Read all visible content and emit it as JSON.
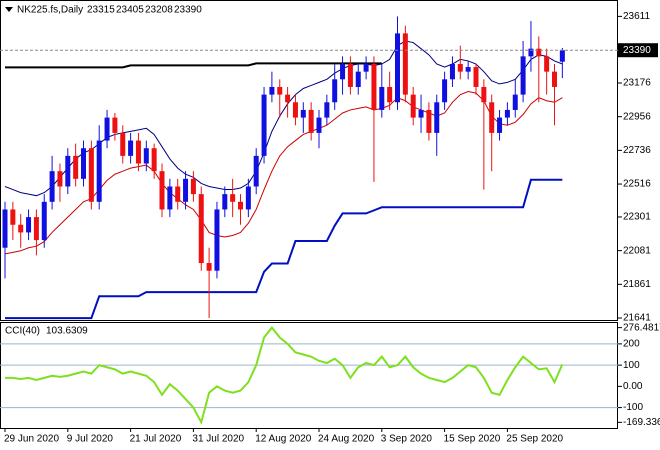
{
  "chart_data": [
    {
      "type": "candlestick",
      "title": "NK225.fs,Daily",
      "categories": [
        "29 Jun 2020",
        null,
        null,
        null,
        null,
        null,
        null,
        null,
        "9 Jul 2020",
        null,
        null,
        null,
        null,
        null,
        null,
        null,
        "21 Jul 2020",
        null,
        null,
        null,
        null,
        null,
        null,
        null,
        "31 Jul 2020",
        null,
        null,
        null,
        null,
        null,
        null,
        null,
        "12 Aug 2020",
        null,
        null,
        null,
        null,
        null,
        null,
        null,
        "24 Aug 2020",
        null,
        null,
        null,
        null,
        null,
        null,
        null,
        "3 Sep 2020",
        null,
        null,
        null,
        null,
        null,
        null,
        null,
        "15 Sep 2020",
        null,
        null,
        null,
        null,
        null,
        null,
        null,
        "25 Sep 2020",
        null,
        null,
        null,
        null,
        null,
        null,
        null
      ],
      "open": [
        22100,
        22350,
        22250,
        22200,
        22300,
        22150,
        22400,
        22600,
        22500,
        22700,
        22550,
        22750,
        22400,
        22800,
        22950,
        22850,
        22700,
        22800,
        22650,
        22750,
        22600,
        22350,
        22500,
        22400,
        22550,
        22450,
        22000,
        21950,
        22350,
        22450,
        22400,
        22350,
        22500,
        22700,
        23100,
        23150,
        23100,
        23050,
        22950,
        23000,
        22850,
        22950,
        23050,
        23200,
        23300,
        23150,
        23250,
        23300,
        23000,
        23150,
        23050,
        23500,
        23100,
        22950,
        23000,
        22850,
        23050,
        23200,
        23300,
        23250,
        23280,
        23150,
        23050,
        22850,
        22950,
        23000,
        23100,
        23350,
        23400,
        23350,
        23250,
        23315
      ],
      "high": [
        22400,
        22400,
        22320,
        22350,
        22350,
        22450,
        22700,
        22650,
        22750,
        22780,
        22800,
        22800,
        22900,
        23000,
        22980,
        22900,
        22850,
        22850,
        22800,
        22780,
        22650,
        22550,
        22550,
        22600,
        22600,
        22500,
        22100,
        22400,
        22500,
        22550,
        22450,
        22550,
        22750,
        23150,
        23250,
        23200,
        23150,
        23100,
        23050,
        23050,
        23000,
        23100,
        23300,
        23350,
        23350,
        23300,
        23350,
        23350,
        23300,
        23250,
        23611,
        23550,
        23150,
        23100,
        23050,
        23100,
        23250,
        23350,
        23420,
        23320,
        23300,
        23200,
        23100,
        23000,
        23050,
        23200,
        23450,
        23580,
        23480,
        23400,
        23300,
        23405
      ],
      "low": [
        21900,
        22150,
        22100,
        22150,
        22050,
        22100,
        22350,
        22400,
        22450,
        22500,
        22500,
        22350,
        22350,
        22750,
        22800,
        22650,
        22650,
        22600,
        22600,
        22550,
        22300,
        22300,
        22350,
        22350,
        22400,
        21950,
        21641,
        21900,
        22300,
        22300,
        22250,
        22300,
        22450,
        22650,
        23050,
        22950,
        22950,
        22900,
        22850,
        22800,
        22750,
        22900,
        23000,
        23100,
        23100,
        23100,
        23200,
        22530,
        22950,
        23000,
        23000,
        23050,
        22900,
        22850,
        22800,
        22700,
        23000,
        23150,
        23200,
        23200,
        23100,
        22480,
        22600,
        22800,
        22900,
        22950,
        23050,
        23250,
        23050,
        23100,
        22900,
        23208
      ],
      "close": [
        22350,
        22250,
        22200,
        22300,
        22150,
        22400,
        22600,
        22500,
        22700,
        22550,
        22750,
        22400,
        22800,
        22950,
        22850,
        22700,
        22800,
        22650,
        22750,
        22600,
        22350,
        22500,
        22400,
        22550,
        22450,
        22000,
        21950,
        22350,
        22450,
        22400,
        22350,
        22500,
        22700,
        23100,
        23150,
        23100,
        23050,
        22950,
        23000,
        22850,
        22950,
        23050,
        23200,
        23300,
        23150,
        23250,
        23300,
        23000,
        23150,
        23050,
        23500,
        23100,
        22950,
        23000,
        22850,
        23050,
        23200,
        23300,
        23250,
        23280,
        23150,
        23050,
        22850,
        22950,
        23000,
        23100,
        23350,
        23400,
        23350,
        23250,
        23150,
        23390
      ],
      "up_color": "#1010e0",
      "down_color": "#ee1111",
      "lines": [
        {
          "color": "#000000",
          "width": 2,
          "values": [
            23278,
            23278,
            23278,
            23278,
            23278,
            23278,
            23278,
            23278,
            23278,
            23278,
            23278,
            23278,
            23278,
            23278,
            23278,
            23278,
            23291,
            23291,
            23291,
            23291,
            23291,
            23291,
            23291,
            23291,
            23291,
            23291,
            23291,
            23291,
            23291,
            23291,
            23291,
            23291,
            23304,
            23304,
            23304,
            23304,
            23304,
            23304,
            23304,
            23304,
            23304,
            23304,
            23304,
            23304,
            23304,
            23304,
            23304,
            23304,
            23304,
            null,
            null,
            null,
            null,
            null,
            null,
            null,
            null,
            null,
            null,
            null,
            null,
            null,
            null,
            null,
            null,
            null,
            null,
            null,
            null,
            null,
            null,
            null
          ]
        },
        {
          "color": "#0010c0",
          "width": 2,
          "values": [
            21640,
            21640,
            21640,
            21640,
            21640,
            21640,
            21640,
            21640,
            21640,
            21640,
            21640,
            21640,
            21783,
            21783,
            21783,
            21783,
            21783,
            21783,
            21810,
            21810,
            21810,
            21810,
            21810,
            21810,
            21810,
            21810,
            21810,
            21810,
            21810,
            21810,
            21810,
            21810,
            21810,
            21943,
            21997,
            21997,
            21997,
            22144,
            22144,
            22144,
            22144,
            22144,
            22244,
            22324,
            22324,
            22324,
            22324,
            22344,
            22364,
            22364,
            22364,
            22364,
            22364,
            22364,
            22364,
            22364,
            22364,
            22364,
            22364,
            22364,
            22364,
            22364,
            22364,
            22364,
            22364,
            22364,
            22364,
            22544,
            22544,
            22544,
            22544,
            22544
          ]
        },
        {
          "color": "#000080",
          "width": 1,
          "values": [
            22500,
            22480,
            22460,
            22450,
            22440,
            22460,
            22500,
            22560,
            22620,
            22680,
            22720,
            22740,
            22780,
            22820,
            22840,
            22850,
            22860,
            22870,
            22880,
            22840,
            22760,
            22680,
            22620,
            22580,
            22560,
            22520,
            22500,
            22490,
            22480,
            22480,
            22490,
            22520,
            22600,
            22720,
            22860,
            22960,
            23040,
            23100,
            23140,
            23160,
            23180,
            23200,
            23240,
            23270,
            23290,
            23300,
            23300,
            23290,
            23300,
            23330,
            23420,
            23450,
            23440,
            23400,
            23360,
            23300,
            23280,
            23300,
            23330,
            23320,
            23300,
            23250,
            23190,
            23170,
            23180,
            23200,
            23260,
            23330,
            23360,
            23350,
            23320,
            23300
          ]
        },
        {
          "color": "#cc0000",
          "width": 1,
          "values": [
            22060,
            22070,
            22080,
            22100,
            22110,
            22140,
            22200,
            22250,
            22300,
            22350,
            22400,
            22420,
            22480,
            22540,
            22580,
            22600,
            22620,
            22630,
            22640,
            22600,
            22520,
            22460,
            22420,
            22380,
            22350,
            22280,
            22200,
            22180,
            22170,
            22180,
            22200,
            22260,
            22350,
            22480,
            22600,
            22700,
            22760,
            22800,
            22840,
            22860,
            22880,
            22900,
            22940,
            22980,
            23000,
            23010,
            23020,
            23000,
            23010,
            23030,
            23080,
            23060,
            23020,
            23000,
            22980,
            22960,
            22980,
            23050,
            23100,
            23120,
            23110,
            23060,
            22960,
            22910,
            22900,
            22920,
            22970,
            23040,
            23080,
            23060,
            23050,
            23080
          ]
        }
      ],
      "ylim": [
        21628,
        23718
      ],
      "yticks": [
        23611,
        23176,
        22956,
        22736,
        22516,
        22301,
        22081,
        21861,
        21641
      ]
    },
    {
      "type": "line",
      "title": "CCI(40)",
      "color": "#7ee01e",
      "values": [
        40,
        40,
        35,
        40,
        30,
        40,
        50,
        45,
        50,
        60,
        70,
        60,
        100,
        90,
        80,
        60,
        70,
        60,
        50,
        20,
        -40,
        10,
        -20,
        -60,
        -100,
        -169.336,
        -30,
        0,
        -20,
        -30,
        -20,
        20,
        100,
        230,
        276.4817,
        230,
        200,
        160,
        150,
        140,
        120,
        110,
        130,
        100,
        40,
        90,
        110,
        100,
        140,
        90,
        100,
        140,
        90,
        60,
        40,
        30,
        20,
        40,
        70,
        100,
        90,
        40,
        -30,
        -40,
        30,
        90,
        140,
        110,
        80,
        85,
        20,
        103.6309
      ],
      "ylim": [
        -196,
        303
      ],
      "yticks": [
        276.4817,
        200,
        100,
        {
          "value": 0,
          "label": "0.00"
        },
        -100,
        -169.336
      ],
      "levels": [
        200,
        100,
        -100
      ],
      "level_color": "#9ab4d0"
    }
  ]
}
